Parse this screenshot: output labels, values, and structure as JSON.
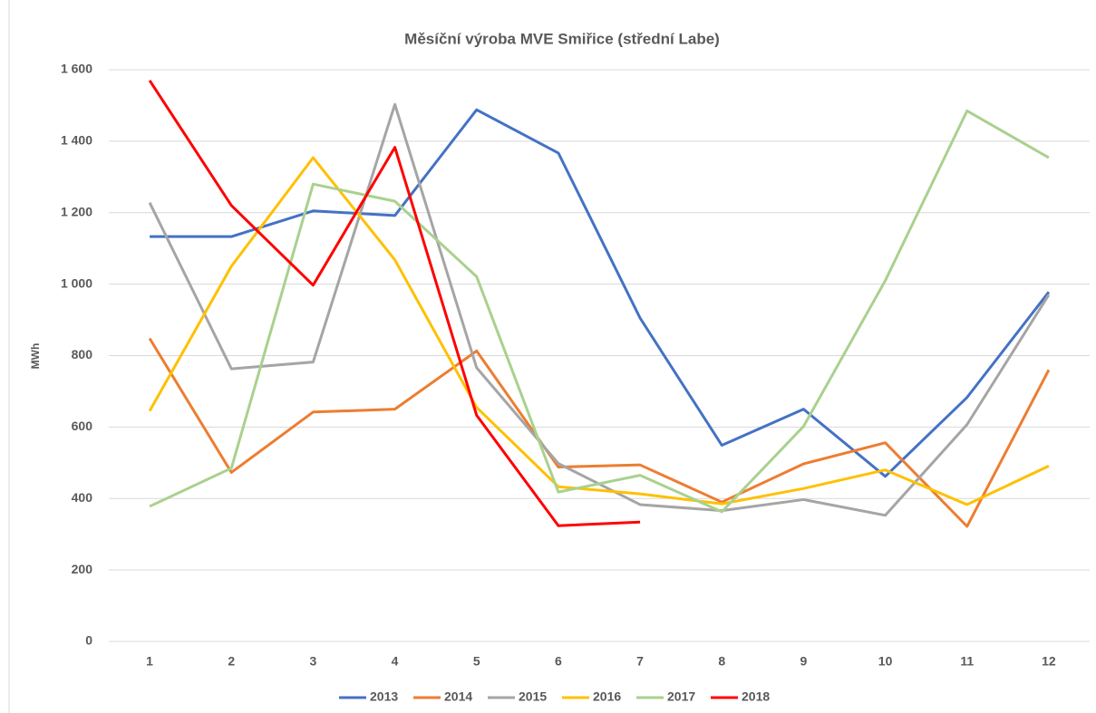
{
  "chart_data": {
    "type": "line",
    "title": "Měsíční výroba MVE Smiřice (střední Labe)",
    "y_label": "MWh",
    "categories": [
      "1",
      "2",
      "3",
      "4",
      "5",
      "6",
      "7",
      "8",
      "9",
      "10",
      "11",
      "12"
    ],
    "ylim": [
      0,
      1600
    ],
    "yticks": [
      0,
      200,
      400,
      600,
      800,
      {
        "value": 1000,
        "label": "1 000"
      },
      {
        "value": 1200,
        "label": "1 200"
      },
      {
        "value": 1400,
        "label": "1 400"
      },
      {
        "value": 1600,
        "label": "1 600"
      }
    ],
    "grid": true,
    "legend": "bottom",
    "series": [
      {
        "name": "2013",
        "color": "#4472c4",
        "values": [
          1133,
          1133,
          1205,
          1192,
          1488,
          1367,
          905,
          549,
          650,
          462,
          683,
          978
        ]
      },
      {
        "name": "2014",
        "color": "#ed7d31",
        "values": [
          848,
          473,
          642,
          650,
          813,
          488,
          494,
          390,
          497,
          556,
          322,
          760
        ]
      },
      {
        "name": "2015",
        "color": "#a5a5a5",
        "values": [
          1228,
          763,
          782,
          1503,
          766,
          498,
          383,
          366,
          397,
          353,
          607,
          970
        ]
      },
      {
        "name": "2016",
        "color": "#ffc000",
        "values": [
          645,
          1050,
          1354,
          1068,
          655,
          433,
          413,
          385,
          428,
          480,
          383,
          491
        ]
      },
      {
        "name": "2017",
        "color": "#a9d18e",
        "values": [
          378,
          485,
          1280,
          1232,
          1021,
          418,
          465,
          363,
          602,
          1010,
          1485,
          1354
        ]
      },
      {
        "name": "2018",
        "color": "#ff0000",
        "values": [
          1570,
          1220,
          997,
          1383,
          633,
          324,
          334,
          null,
          null,
          null,
          null,
          null
        ]
      }
    ]
  }
}
